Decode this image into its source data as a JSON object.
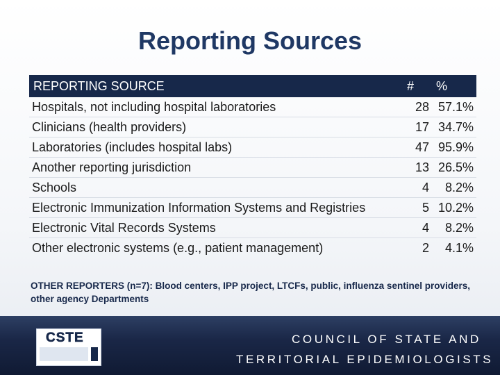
{
  "title": "Reporting Sources",
  "table": {
    "header": [
      "REPORTING SOURCE",
      "#",
      "%"
    ],
    "rows": [
      [
        "Hospitals, not including hospital laboratories",
        28,
        "57.1%"
      ],
      [
        "Clinicians (health providers)",
        17,
        "34.7%"
      ],
      [
        "Laboratories (includes hospital labs)",
        47,
        "95.9%"
      ],
      [
        "Another reporting jurisdiction",
        13,
        "26.5%"
      ],
      [
        "Schools",
        4,
        "8.2%"
      ],
      [
        "Electronic Immunization Information Systems and Registries",
        5,
        "10.2%"
      ],
      [
        "Electronic Vital Records Systems",
        4,
        "8.2%"
      ],
      [
        "Other electronic systems (e.g., patient management)",
        2,
        "4.1%"
      ]
    ]
  },
  "note": "OTHER REPORTERS (n=7): Blood centers, IPP project, LTCFs, public, influenza sentinel providers, other agency Departments",
  "footer": {
    "logo": "CSTE",
    "lines": [
      "COUNCIL OF STATE AND",
      "TERRITORIAL EPIDEMIOLOGISTS"
    ]
  }
}
